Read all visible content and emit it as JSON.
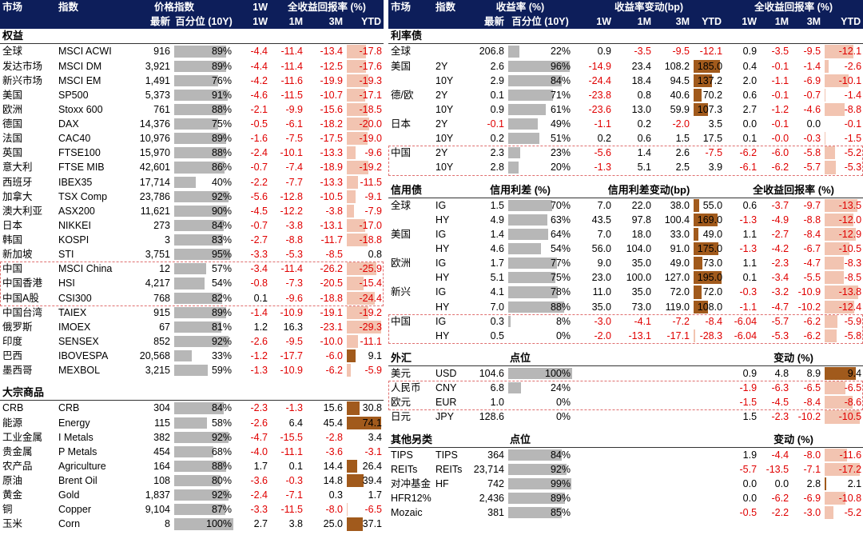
{
  "equity": {
    "headers": {
      "market": "市场",
      "index": "指数",
      "price_index": "价格指数",
      "total_return": "全收益回报率 (%)",
      "latest": "最新",
      "percentile": "百分位 (10Y)",
      "w1": "1W",
      "m1": "1M",
      "m3": "3M",
      "ytd": "YTD"
    },
    "section": "权益",
    "rows": [
      {
        "market": "全球",
        "index": "MSCI ACWI",
        "latest": "916",
        "pct": "89%",
        "pv": 89,
        "w1": "-4.4",
        "m1": "-11.4",
        "m3": "-13.4",
        "ytd": "-17.8",
        "yv": -17.8
      },
      {
        "market": "发达市场",
        "index": "MSCI DM",
        "latest": "3,921",
        "pct": "89%",
        "pv": 89,
        "w1": "-4.4",
        "m1": "-11.4",
        "m3": "-12.5",
        "ytd": "-17.6",
        "yv": -17.6
      },
      {
        "market": "新兴市场",
        "index": "MSCI EM",
        "latest": "1,491",
        "pct": "76%",
        "pv": 76,
        "w1": "-4.2",
        "m1": "-11.6",
        "m3": "-19.9",
        "ytd": "-19.3",
        "yv": -19.3
      },
      {
        "market": "美国",
        "index": "SP500",
        "latest": "5,373",
        "pct": "91%",
        "pv": 91,
        "w1": "-4.6",
        "m1": "-11.5",
        "m3": "-10.7",
        "ytd": "-17.1",
        "yv": -17.1
      },
      {
        "market": "欧洲",
        "index": "Stoxx 600",
        "latest": "761",
        "pct": "88%",
        "pv": 88,
        "w1": "-2.1",
        "m1": "-9.9",
        "m3": "-15.6",
        "ytd": "-18.5",
        "yv": -18.5
      },
      {
        "market": "德国",
        "index": "DAX",
        "latest": "14,376",
        "pct": "75%",
        "pv": 75,
        "w1": "-0.5",
        "m1": "-6.1",
        "m3": "-18.2",
        "ytd": "-20.0",
        "yv": -20.0
      },
      {
        "market": "法国",
        "index": "CAC40",
        "latest": "10,976",
        "pct": "89%",
        "pv": 89,
        "w1": "-1.6",
        "m1": "-7.5",
        "m3": "-17.5",
        "ytd": "-19.0",
        "yv": -19.0
      },
      {
        "market": "英国",
        "index": "FTSE100",
        "latest": "15,970",
        "pct": "88%",
        "pv": 88,
        "w1": "-2.4",
        "m1": "-10.1",
        "m3": "-13.3",
        "ytd": "-9.6",
        "yv": -9.6
      },
      {
        "market": "意大利",
        "index": "FTSE MIB",
        "latest": "42,601",
        "pct": "86%",
        "pv": 86,
        "w1": "-0.7",
        "m1": "-7.4",
        "m3": "-18.9",
        "ytd": "-19.2",
        "yv": -19.2
      },
      {
        "market": "西班牙",
        "index": "IBEX35",
        "latest": "17,714",
        "pct": "40%",
        "pv": 40,
        "w1": "-2.2",
        "m1": "-7.7",
        "m3": "-13.3",
        "ytd": "-11.5",
        "yv": -11.5
      },
      {
        "market": "加拿大",
        "index": "TSX Comp",
        "latest": "23,786",
        "pct": "92%",
        "pv": 92,
        "w1": "-5.6",
        "m1": "-12.8",
        "m3": "-10.5",
        "ytd": "-9.1",
        "yv": -9.1
      },
      {
        "market": "澳大利亚",
        "index": "ASX200",
        "latest": "11,621",
        "pct": "90%",
        "pv": 90,
        "w1": "-4.5",
        "m1": "-12.2",
        "m3": "-3.8",
        "ytd": "-7.9",
        "yv": -7.9
      },
      {
        "market": "日本",
        "index": "NIKKEI",
        "latest": "273",
        "pct": "84%",
        "pv": 84,
        "w1": "-0.7",
        "m1": "-3.8",
        "m3": "-13.1",
        "ytd": "-17.0",
        "yv": -17.0
      },
      {
        "market": "韩国",
        "index": "KOSPI",
        "latest": "3",
        "pct": "83%",
        "pv": 83,
        "w1": "-2.7",
        "m1": "-8.8",
        "m3": "-11.7",
        "ytd": "-18.8",
        "yv": -18.8
      },
      {
        "market": "新加坡",
        "index": "STI",
        "latest": "3,751",
        "pct": "95%",
        "pv": 95,
        "w1": "-3.3",
        "m1": "-5.3",
        "m3": "-8.5",
        "ytd": "0.8",
        "yv": 0.8
      },
      {
        "market": "中国",
        "index": "MSCI China",
        "latest": "12",
        "pct": "57%",
        "pv": 57,
        "w1": "-3.4",
        "m1": "-11.4",
        "m3": "-26.2",
        "ytd": "-25.9",
        "yv": -25.9
      },
      {
        "market": "中国香港",
        "index": "HSI",
        "latest": "4,217",
        "pct": "54%",
        "pv": 54,
        "w1": "-0.8",
        "m1": "-7.3",
        "m3": "-20.5",
        "ytd": "-15.4",
        "yv": -15.4
      },
      {
        "market": "中国A股",
        "index": "CSI300",
        "latest": "768",
        "pct": "82%",
        "pv": 82,
        "w1": "0.1",
        "m1": "-9.6",
        "m3": "-18.8",
        "ytd": "-24.4",
        "yv": -24.4
      },
      {
        "market": "中国台湾",
        "index": "TAIEX",
        "latest": "915",
        "pct": "89%",
        "pv": 89,
        "w1": "-1.4",
        "m1": "-10.9",
        "m3": "-19.1",
        "ytd": "-19.2",
        "yv": -19.2
      },
      {
        "market": "俄罗斯",
        "index": "IMOEX",
        "latest": "67",
        "pct": "81%",
        "pv": 81,
        "w1": "1.2",
        "m1": "16.3",
        "m3": "-23.1",
        "ytd": "-29.3",
        "yv": -29.3
      },
      {
        "market": "印度",
        "index": "SENSEX",
        "latest": "852",
        "pct": "92%",
        "pv": 92,
        "w1": "-2.6",
        "m1": "-9.5",
        "m3": "-10.0",
        "ytd": "-11.1",
        "yv": -11.1
      },
      {
        "market": "巴西",
        "index": "IBOVESPA",
        "latest": "20,568",
        "pct": "33%",
        "pv": 33,
        "w1": "-1.2",
        "m1": "-17.7",
        "m3": "-6.0",
        "ytd": "9.1",
        "yv": 9.1
      },
      {
        "market": "墨西哥",
        "index": "MEXBOL",
        "latest": "3,215",
        "pct": "59%",
        "pv": 59,
        "w1": "-1.3",
        "m1": "-10.9",
        "m3": "-6.2",
        "ytd": "-5.9",
        "yv": -5.9
      }
    ]
  },
  "commodities": {
    "section": "大宗商品",
    "rows": [
      {
        "market": "CRB",
        "index": "CRB",
        "latest": "304",
        "pct": "84%",
        "pv": 84,
        "w1": "-2.3",
        "m1": "-1.3",
        "m3": "15.6",
        "ytd": "30.8",
        "yv": 30.8
      },
      {
        "market": "能源",
        "index": "Energy",
        "latest": "115",
        "pct": "58%",
        "pv": 58,
        "w1": "-2.6",
        "m1": "6.4",
        "m3": "45.4",
        "ytd": "74.1",
        "yv": 74.1
      },
      {
        "market": "工业金属",
        "index": "I Metals",
        "latest": "382",
        "pct": "92%",
        "pv": 92,
        "w1": "-4.7",
        "m1": "-15.5",
        "m3": "-2.8",
        "ytd": "3.4",
        "yv": 3.4
      },
      {
        "market": "贵金属",
        "index": "P Metals",
        "latest": "454",
        "pct": "68%",
        "pv": 68,
        "w1": "-4.0",
        "m1": "-11.1",
        "m3": "-3.6",
        "ytd": "-3.1",
        "yv": -3.1
      },
      {
        "market": "农产品",
        "index": "Agriculture",
        "latest": "164",
        "pct": "88%",
        "pv": 88,
        "w1": "1.7",
        "m1": "0.1",
        "m3": "14.4",
        "ytd": "26.4",
        "yv": 26.4
      },
      {
        "market": "原油",
        "index": "Brent Oil",
        "latest": "108",
        "pct": "80%",
        "pv": 80,
        "w1": "-3.6",
        "m1": "-0.3",
        "m3": "14.8",
        "ytd": "39.4",
        "yv": 39.4
      },
      {
        "market": "黄金",
        "index": "Gold",
        "latest": "1,837",
        "pct": "92%",
        "pv": 92,
        "w1": "-2.4",
        "m1": "-7.1",
        "m3": "0.3",
        "ytd": "1.7",
        "yv": 1.7
      },
      {
        "market": "铜",
        "index": "Copper",
        "latest": "9,104",
        "pct": "87%",
        "pv": 87,
        "w1": "-3.3",
        "m1": "-11.5",
        "m3": "-8.0",
        "ytd": "-6.5",
        "yv": -6.5
      },
      {
        "market": "玉米",
        "index": "Corn",
        "latest": "8",
        "pct": "100%",
        "pv": 100,
        "w1": "2.7",
        "m1": "3.8",
        "m3": "25.0",
        "ytd": "37.1",
        "yv": 37.1
      }
    ]
  },
  "rates": {
    "headers": {
      "market": "市场",
      "index": "指数",
      "yield": "收益率 (%)",
      "yield_chg": "收益率变动(bp)",
      "total_return": "全收益回报率 (%)",
      "latest": "最新",
      "percentile": "百分位 (10Y)",
      "w1": "1W",
      "m1": "1M",
      "m3": "3M",
      "ytd": "YTD"
    },
    "section": "利率债",
    "rows": [
      {
        "market": "全球",
        "index": "",
        "latest": "206.8",
        "pct": "22%",
        "pv": 22,
        "c1": "0.9",
        "c2": "-3.5",
        "c3": "-9.5",
        "cy": "-12.1",
        "cv": -12.1,
        "r1": "0.9",
        "r2": "-3.5",
        "r3": "-9.5",
        "ry": "-12.1",
        "rv": -12.1
      },
      {
        "market": "美国",
        "index": "2Y",
        "latest": "2.6",
        "pct": "96%",
        "pv": 96,
        "c1": "-14.9",
        "c2": "23.4",
        "c3": "108.2",
        "cy": "185.0",
        "cv": 185.0,
        "r1": "0.4",
        "r2": "-0.1",
        "r3": "-1.4",
        "ry": "-2.6",
        "rv": -2.6
      },
      {
        "market": "",
        "index": "10Y",
        "latest": "2.9",
        "pct": "84%",
        "pv": 84,
        "c1": "-24.4",
        "c2": "18.4",
        "c3": "94.5",
        "cy": "137.2",
        "cv": 137.2,
        "r1": "2.0",
        "r2": "-1.1",
        "r3": "-6.9",
        "ry": "-10.1",
        "rv": -10.1
      },
      {
        "market": "德/欧",
        "index": "2Y",
        "latest": "0.1",
        "pct": "71%",
        "pv": 71,
        "c1": "-23.8",
        "c2": "0.8",
        "c3": "40.6",
        "cy": "70.2",
        "cv": 70.2,
        "r1": "0.6",
        "r2": "-0.1",
        "r3": "-0.7",
        "ry": "-1.4",
        "rv": -1.4
      },
      {
        "market": "",
        "index": "10Y",
        "latest": "0.9",
        "pct": "61%",
        "pv": 61,
        "c1": "-23.6",
        "c2": "13.0",
        "c3": "59.9",
        "cy": "107.3",
        "cv": 107.3,
        "r1": "2.7",
        "r2": "-1.2",
        "r3": "-4.6",
        "ry": "-8.8",
        "rv": -8.8
      },
      {
        "market": "日本",
        "index": "2Y",
        "latest": "-0.1",
        "pct": "49%",
        "pv": 49,
        "c1": "-1.1",
        "c2": "0.2",
        "c3": "-2.0",
        "cy": "3.5",
        "cv": 3.5,
        "r1": "0.0",
        "r2": "-0.1",
        "r3": "0.0",
        "ry": "-0.1",
        "rv": -0.1
      },
      {
        "market": "",
        "index": "10Y",
        "latest": "0.2",
        "pct": "51%",
        "pv": 51,
        "c1": "0.2",
        "c2": "0.6",
        "c3": "1.5",
        "cy": "17.5",
        "cv": 17.5,
        "r1": "0.1",
        "r2": "-0.0",
        "r3": "-0.3",
        "ry": "-1.5",
        "rv": -1.5
      },
      {
        "market": "中国",
        "index": "2Y",
        "latest": "2.3",
        "pct": "23%",
        "pv": 23,
        "c1": "-5.6",
        "c2": "1.4",
        "c3": "2.6",
        "cy": "-7.5",
        "cv": -7.5,
        "r1": "-6.2",
        "r2": "-6.0",
        "r3": "-5.8",
        "ry": "-5.2",
        "rv": -5.2
      },
      {
        "market": "",
        "index": "10Y",
        "latest": "2.8",
        "pct": "20%",
        "pv": 20,
        "c1": "-1.3",
        "c2": "5.1",
        "c3": "2.5",
        "cy": "3.9",
        "cv": 3.9,
        "r1": "-6.1",
        "r2": "-6.2",
        "r3": "-5.7",
        "ry": "-5.3",
        "rv": -5.3
      }
    ]
  },
  "credit": {
    "section": "信用债",
    "spread": "信用利差 (%)",
    "spread_chg": "信用利差变动(bp)",
    "total_return": "全收益回报率 (%)",
    "rows": [
      {
        "market": "全球",
        "index": "IG",
        "latest": "1.5",
        "pct": "70%",
        "pv": 70,
        "c1": "7.0",
        "c2": "22.0",
        "c3": "38.0",
        "cy": "55.0",
        "cv": 55.0,
        "r1": "0.6",
        "r2": "-3.7",
        "r3": "-9.7",
        "ry": "-13.5",
        "rv": -13.5
      },
      {
        "market": "",
        "index": "HY",
        "latest": "4.9",
        "pct": "63%",
        "pv": 63,
        "c1": "43.5",
        "c2": "97.8",
        "c3": "100.4",
        "cy": "169.0",
        "cv": 169.0,
        "r1": "-1.3",
        "r2": "-4.9",
        "r3": "-8.8",
        "ry": "-12.0",
        "rv": -12.0
      },
      {
        "market": "美国",
        "index": "IG",
        "latest": "1.4",
        "pct": "64%",
        "pv": 64,
        "c1": "7.0",
        "c2": "18.0",
        "c3": "33.0",
        "cy": "49.0",
        "cv": 49.0,
        "r1": "1.1",
        "r2": "-2.7",
        "r3": "-8.4",
        "ry": "-12.9",
        "rv": -12.9
      },
      {
        "market": "",
        "index": "HY",
        "latest": "4.6",
        "pct": "54%",
        "pv": 54,
        "c1": "56.0",
        "c2": "104.0",
        "c3": "91.0",
        "cy": "175.0",
        "cv": 175.0,
        "r1": "-1.3",
        "r2": "-4.2",
        "r3": "-6.7",
        "ry": "-10.5",
        "rv": -10.5
      },
      {
        "market": "欧洲",
        "index": "IG",
        "latest": "1.7",
        "pct": "77%",
        "pv": 77,
        "c1": "9.0",
        "c2": "35.0",
        "c3": "49.0",
        "cy": "73.0",
        "cv": 73.0,
        "r1": "1.1",
        "r2": "-2.3",
        "r3": "-4.7",
        "ry": "-8.3",
        "rv": -8.3
      },
      {
        "market": "",
        "index": "HY",
        "latest": "5.1",
        "pct": "75%",
        "pv": 75,
        "c1": "23.0",
        "c2": "100.0",
        "c3": "127.0",
        "cy": "195.0",
        "cv": 195.0,
        "r1": "0.1",
        "r2": "-3.4",
        "r3": "-5.5",
        "ry": "-8.5",
        "rv": -8.5
      },
      {
        "market": "新兴",
        "index": "IG",
        "latest": "4.1",
        "pct": "78%",
        "pv": 78,
        "c1": "11.0",
        "c2": "35.0",
        "c3": "72.0",
        "cy": "72.0",
        "cv": 72.0,
        "r1": "-0.3",
        "r2": "-3.2",
        "r3": "-10.9",
        "ry": "-13.8",
        "rv": -13.8
      },
      {
        "market": "",
        "index": "HY",
        "latest": "7.0",
        "pct": "88%",
        "pv": 88,
        "c1": "35.0",
        "c2": "73.0",
        "c3": "119.0",
        "cy": "108.0",
        "cv": 108.0,
        "r1": "-1.1",
        "r2": "-4.7",
        "r3": "-10.2",
        "ry": "-12.4",
        "rv": -12.4
      },
      {
        "market": "中国",
        "index": "IG",
        "latest": "0.3",
        "pct": "8%",
        "pv": 8,
        "c1": "-3.0",
        "c2": "-4.1",
        "c3": "-7.2",
        "cy": "-8.4",
        "cv": -8.4,
        "r1": "-6.04",
        "r2": "-5.7",
        "r3": "-6.2",
        "ry": "-5.9",
        "rv": -5.9
      },
      {
        "market": "",
        "index": "HY",
        "latest": "0.5",
        "pct": "0%",
        "pv": 0,
        "c1": "-2.0",
        "c2": "-13.1",
        "c3": "-17.1",
        "cy": "-28.3",
        "cv": -28.3,
        "r1": "-6.04",
        "r2": "-5.3",
        "r3": "-6.2",
        "ry": "-5.8",
        "rv": -5.8
      }
    ]
  },
  "fx": {
    "section": "外汇",
    "level": "点位",
    "change": "变动 (%)",
    "rows": [
      {
        "market": "美元",
        "index": "USD",
        "latest": "104.6",
        "pct": "100%",
        "pv": 100,
        "r1": "0.9",
        "r2": "4.8",
        "r3": "8.9",
        "ry": "9.4",
        "rv": 9.4
      },
      {
        "market": "人民币",
        "index": "CNY",
        "latest": "6.8",
        "pct": "24%",
        "pv": 24,
        "r1": "-1.9",
        "r2": "-6.3",
        "r3": "-6.5",
        "ry": "-6.5",
        "rv": -6.5
      },
      {
        "market": "欧元",
        "index": "EUR",
        "latest": "1.0",
        "pct": "0%",
        "pv": 0,
        "r1": "-1.5",
        "r2": "-4.5",
        "r3": "-8.4",
        "ry": "-8.6",
        "rv": -8.6
      },
      {
        "market": "日元",
        "index": "JPY",
        "latest": "128.6",
        "pct": "0%",
        "pv": 0,
        "r1": "1.5",
        "r2": "-2.3",
        "r3": "-10.2",
        "ry": "-10.5",
        "rv": -10.5
      }
    ]
  },
  "other": {
    "section": "其他另类",
    "level": "点位",
    "change": "变动 (%)",
    "rows": [
      {
        "market": "TIPS",
        "index": "TIPS",
        "latest": "364",
        "pct": "84%",
        "pv": 84,
        "r1": "1.9",
        "r2": "-4.4",
        "r3": "-8.0",
        "ry": "-11.6",
        "rv": -11.6
      },
      {
        "market": "REITs",
        "index": "REITs",
        "latest": "23,714",
        "pct": "92%",
        "pv": 92,
        "r1": "-5.7",
        "r2": "-13.5",
        "r3": "-7.1",
        "ry": "-17.2",
        "rv": -17.2
      },
      {
        "market": "对冲基金",
        "index": "HF",
        "latest": "742",
        "pct": "99%",
        "pv": 99,
        "r1": "0.0",
        "r2": "0.0",
        "r3": "2.8",
        "ry": "2.1",
        "rv": 2.1
      },
      {
        "market": "HFR12%",
        "index": "",
        "latest": "2,436",
        "pct": "89%",
        "pv": 89,
        "r1": "0.0",
        "r2": "-6.2",
        "r3": "-6.9",
        "ry": "-10.8",
        "rv": -10.8
      },
      {
        "market": "Mozaic",
        "index": "",
        "latest": "381",
        "pct": "85%",
        "pv": 85,
        "r1": "-0.5",
        "r2": "-2.2",
        "r3": "-3.0",
        "ry": "-5.2",
        "rv": -5.2
      }
    ]
  }
}
